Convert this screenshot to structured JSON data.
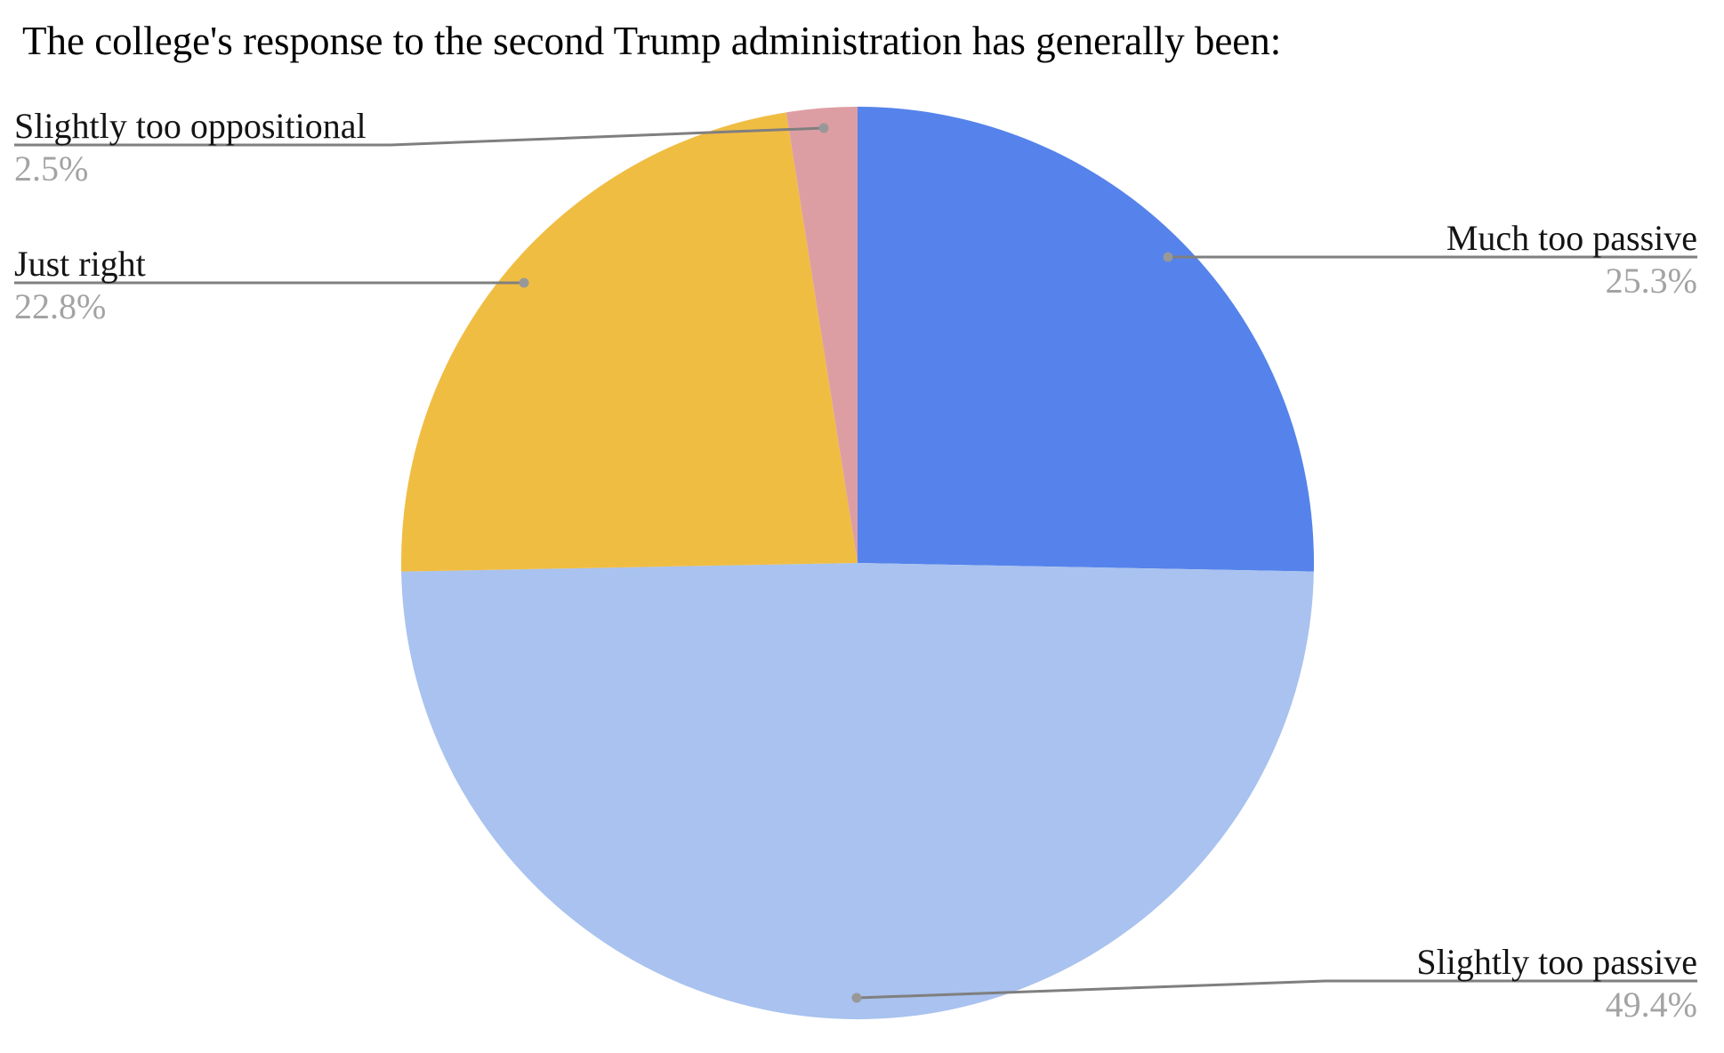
{
  "title": "The college's response to the second Trump administration has generally been:",
  "chart_data": {
    "type": "pie",
    "title": "The college's response to the second Trump administration has generally been:",
    "start_angle_deg": 0,
    "direction": "clockwise",
    "legend_position": "none",
    "label_style": "outside callouts with gray leader lines and anchor dots; category name in black above the line, percentage in gray below",
    "slices": [
      {
        "label": "Much too passive",
        "value": 25.3,
        "display": "25.3%",
        "color": "#5583EB"
      },
      {
        "label": "Slightly too passive",
        "value": 49.4,
        "display": "49.4%",
        "color": "#A9C2EF"
      },
      {
        "label": "Just right",
        "value": 22.8,
        "display": "22.8%",
        "color": "#F0BD43"
      },
      {
        "label": "Slightly too oppositional",
        "value": 2.5,
        "display": "2.5%",
        "color": "#DD9EA3"
      }
    ],
    "colors": {
      "leader_line": "#7F7F7F",
      "anchor_dot": "#989898",
      "percent_text": "#A3A3A3",
      "label_text": "#141414",
      "title_text": "#000000",
      "background": "#FFFFFF"
    }
  }
}
